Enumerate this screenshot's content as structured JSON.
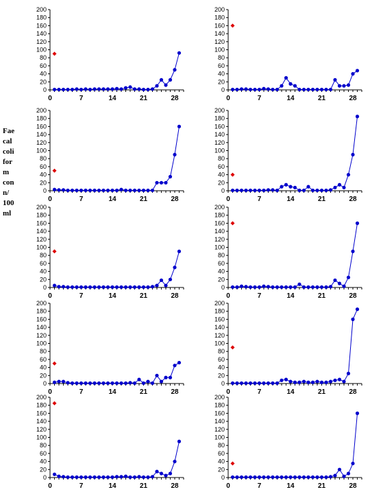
{
  "y_axis_label_lines": [
    "Fae",
    "cal",
    "coli",
    "for",
    "m",
    "con",
    "n/",
    "100",
    "ml"
  ],
  "colors": {
    "series": "#0000cc",
    "baseline_marker": "#dd0000",
    "axis": "#000000"
  },
  "chart_data": [
    {
      "type": "line",
      "title": "",
      "xlabel": "",
      "ylabel": "",
      "xlim": [
        0,
        30
      ],
      "ylim": [
        0,
        200
      ],
      "xticks": [
        "0",
        "7",
        "14",
        "21",
        "28"
      ],
      "yticks": [
        "0",
        "20",
        "40",
        "60",
        "80",
        "100",
        "120",
        "140",
        "160",
        "180",
        "200"
      ],
      "grid": false,
      "legend": "none",
      "markers": [
        {
          "x": 1,
          "y": 90
        }
      ],
      "series": [
        {
          "x": [
            1,
            2,
            3,
            4,
            5,
            6,
            7,
            8,
            9,
            10,
            11,
            12,
            13,
            14,
            15,
            16,
            17,
            18,
            19,
            20,
            21,
            22,
            23,
            24,
            25,
            26,
            27,
            28,
            29
          ],
          "values": [
            1,
            1,
            1,
            1,
            1,
            2,
            1,
            2,
            1,
            2,
            2,
            2,
            2,
            2,
            3,
            2,
            5,
            7,
            2,
            2,
            1,
            1,
            2,
            10,
            25,
            12,
            25,
            50,
            92
          ]
        }
      ]
    },
    {
      "type": "line",
      "title": "",
      "xlabel": "",
      "ylabel": "",
      "xlim": [
        0,
        30
      ],
      "ylim": [
        0,
        200
      ],
      "xticks": [
        "0",
        "7",
        "14",
        "21",
        "28"
      ],
      "yticks": [
        "0",
        "20",
        "40",
        "60",
        "80",
        "100",
        "120",
        "140",
        "160",
        "180",
        "200"
      ],
      "grid": false,
      "legend": "none",
      "markers": [
        {
          "x": 1,
          "y": 160
        }
      ],
      "series": [
        {
          "x": [
            1,
            2,
            3,
            4,
            5,
            6,
            7,
            8,
            9,
            10,
            11,
            12,
            13,
            14,
            15,
            16,
            17,
            18,
            19,
            20,
            21,
            22,
            23,
            24,
            25,
            26,
            27,
            28,
            29
          ],
          "values": [
            1,
            1,
            2,
            2,
            1,
            1,
            1,
            3,
            2,
            1,
            1,
            10,
            30,
            15,
            10,
            1,
            1,
            1,
            1,
            1,
            1,
            1,
            1,
            25,
            10,
            10,
            12,
            40,
            48
          ]
        }
      ]
    },
    {
      "type": "line",
      "title": "",
      "xlabel": "",
      "ylabel": "",
      "xlim": [
        0,
        30
      ],
      "ylim": [
        0,
        200
      ],
      "xticks": [
        "0",
        "7",
        "14",
        "21",
        "28"
      ],
      "yticks": [
        "0",
        "20",
        "40",
        "60",
        "80",
        "100",
        "120",
        "140",
        "160",
        "180",
        "200"
      ],
      "grid": false,
      "legend": "none",
      "markers": [
        {
          "x": 1,
          "y": 50
        }
      ],
      "series": [
        {
          "x": [
            1,
            2,
            3,
            4,
            5,
            6,
            7,
            8,
            9,
            10,
            11,
            12,
            13,
            14,
            15,
            16,
            17,
            18,
            19,
            20,
            21,
            22,
            23,
            24,
            25,
            26,
            27,
            28,
            29
          ],
          "values": [
            3,
            2,
            2,
            1,
            1,
            1,
            1,
            1,
            1,
            1,
            1,
            1,
            1,
            1,
            1,
            3,
            1,
            1,
            1,
            1,
            1,
            1,
            1,
            20,
            20,
            20,
            35,
            90,
            160
          ]
        }
      ]
    },
    {
      "type": "line",
      "title": "",
      "xlabel": "",
      "ylabel": "",
      "xlim": [
        0,
        30
      ],
      "ylim": [
        0,
        200
      ],
      "xticks": [
        "0",
        "7",
        "14",
        "21",
        "28"
      ],
      "yticks": [
        "0",
        "20",
        "40",
        "60",
        "80",
        "100",
        "120",
        "140",
        "160",
        "180",
        "200"
      ],
      "grid": false,
      "legend": "none",
      "markers": [
        {
          "x": 1,
          "y": 40
        }
      ],
      "series": [
        {
          "x": [
            1,
            2,
            3,
            4,
            5,
            6,
            7,
            8,
            9,
            10,
            11,
            12,
            13,
            14,
            15,
            16,
            17,
            18,
            19,
            20,
            21,
            22,
            23,
            24,
            25,
            26,
            27,
            28,
            29
          ],
          "values": [
            1,
            1,
            1,
            1,
            1,
            1,
            1,
            1,
            2,
            2,
            1,
            10,
            15,
            10,
            8,
            1,
            1,
            10,
            1,
            1,
            1,
            1,
            2,
            8,
            15,
            8,
            40,
            90,
            185
          ]
        }
      ]
    },
    {
      "type": "line",
      "title": "",
      "xlabel": "",
      "ylabel": "",
      "xlim": [
        0,
        30
      ],
      "ylim": [
        0,
        200
      ],
      "xticks": [
        "0",
        "7",
        "14",
        "21",
        "28"
      ],
      "yticks": [
        "0",
        "20",
        "40",
        "60",
        "80",
        "100",
        "120",
        "140",
        "160",
        "180",
        "200"
      ],
      "grid": false,
      "legend": "none",
      "markers": [
        {
          "x": 1,
          "y": 90
        }
      ],
      "series": [
        {
          "x": [
            1,
            2,
            3,
            4,
            5,
            6,
            7,
            8,
            9,
            10,
            11,
            12,
            13,
            14,
            15,
            16,
            17,
            18,
            19,
            20,
            21,
            22,
            23,
            24,
            25,
            26,
            27,
            28,
            29
          ],
          "values": [
            5,
            2,
            2,
            1,
            1,
            1,
            1,
            1,
            1,
            1,
            1,
            1,
            1,
            1,
            1,
            1,
            1,
            1,
            1,
            1,
            1,
            1,
            2,
            5,
            18,
            5,
            20,
            50,
            90
          ]
        }
      ]
    },
    {
      "type": "line",
      "title": "",
      "xlabel": "",
      "ylabel": "",
      "xlim": [
        0,
        30
      ],
      "ylim": [
        0,
        200
      ],
      "xticks": [
        "0",
        "7",
        "14",
        "21",
        "28"
      ],
      "yticks": [
        "0",
        "20",
        "40",
        "60",
        "80",
        "100",
        "120",
        "140",
        "160",
        "180",
        "200"
      ],
      "grid": false,
      "legend": "none",
      "markers": [
        {
          "x": 1,
          "y": 160
        }
      ],
      "series": [
        {
          "x": [
            1,
            2,
            3,
            4,
            5,
            6,
            7,
            8,
            9,
            10,
            11,
            12,
            13,
            14,
            15,
            16,
            17,
            18,
            19,
            20,
            21,
            22,
            23,
            24,
            25,
            26,
            27,
            28,
            29
          ],
          "values": [
            1,
            1,
            3,
            2,
            1,
            1,
            1,
            3,
            2,
            1,
            1,
            1,
            1,
            1,
            1,
            8,
            1,
            1,
            1,
            1,
            1,
            1,
            2,
            18,
            10,
            3,
            25,
            90,
            160
          ]
        }
      ]
    },
    {
      "type": "line",
      "title": "",
      "xlabel": "",
      "ylabel": "",
      "xlim": [
        0,
        30
      ],
      "ylim": [
        0,
        200
      ],
      "xticks": [
        "0",
        "7",
        "14",
        "21",
        "28"
      ],
      "yticks": [
        "0",
        "20",
        "40",
        "60",
        "80",
        "100",
        "120",
        "140",
        "160",
        "180",
        "200"
      ],
      "grid": false,
      "legend": "none",
      "markers": [
        {
          "x": 1,
          "y": 50
        }
      ],
      "series": [
        {
          "x": [
            1,
            2,
            3,
            4,
            5,
            6,
            7,
            8,
            9,
            10,
            11,
            12,
            13,
            14,
            15,
            16,
            17,
            18,
            19,
            20,
            21,
            22,
            23,
            24,
            25,
            26,
            27,
            28,
            29
          ],
          "values": [
            3,
            5,
            5,
            2,
            1,
            1,
            1,
            1,
            1,
            1,
            1,
            1,
            1,
            1,
            1,
            1,
            1,
            2,
            1,
            10,
            1,
            5,
            1,
            20,
            5,
            15,
            15,
            45,
            52
          ]
        }
      ]
    },
    {
      "type": "line",
      "title": "",
      "xlabel": "",
      "ylabel": "",
      "xlim": [
        0,
        30
      ],
      "ylim": [
        0,
        200
      ],
      "xticks": [
        "0",
        "7",
        "14",
        "21",
        "28"
      ],
      "yticks": [
        "0",
        "20",
        "40",
        "60",
        "80",
        "100",
        "120",
        "140",
        "160",
        "180",
        "200"
      ],
      "grid": false,
      "legend": "none",
      "markers": [
        {
          "x": 1,
          "y": 90
        }
      ],
      "series": [
        {
          "x": [
            1,
            2,
            3,
            4,
            5,
            6,
            7,
            8,
            9,
            10,
            11,
            12,
            13,
            14,
            15,
            16,
            17,
            18,
            19,
            20,
            21,
            22,
            23,
            24,
            25,
            26,
            27,
            28,
            29
          ],
          "values": [
            1,
            1,
            1,
            1,
            1,
            1,
            1,
            1,
            1,
            1,
            1,
            8,
            10,
            5,
            3,
            3,
            5,
            3,
            3,
            5,
            3,
            3,
            5,
            8,
            10,
            5,
            25,
            160,
            185
          ]
        }
      ]
    },
    {
      "type": "line",
      "title": "",
      "xlabel": "",
      "ylabel": "",
      "xlim": [
        0,
        30
      ],
      "ylim": [
        0,
        200
      ],
      "xticks": [
        "0",
        "7",
        "14",
        "21",
        "28"
      ],
      "yticks": [
        "0",
        "20",
        "40",
        "60",
        "80",
        "100",
        "120",
        "140",
        "160",
        "180",
        "200"
      ],
      "grid": false,
      "legend": "none",
      "markers": [
        {
          "x": 1,
          "y": 185
        }
      ],
      "series": [
        {
          "x": [
            1,
            2,
            3,
            4,
            5,
            6,
            7,
            8,
            9,
            10,
            11,
            12,
            13,
            14,
            15,
            16,
            17,
            18,
            19,
            20,
            21,
            22,
            23,
            24,
            25,
            26,
            27,
            28,
            29
          ],
          "values": [
            8,
            3,
            2,
            1,
            1,
            1,
            1,
            1,
            1,
            1,
            1,
            1,
            1,
            1,
            2,
            2,
            3,
            1,
            1,
            2,
            1,
            1,
            2,
            15,
            10,
            5,
            10,
            40,
            90
          ]
        }
      ]
    },
    {
      "type": "line",
      "title": "",
      "xlabel": "",
      "ylabel": "",
      "xlim": [
        0,
        30
      ],
      "ylim": [
        0,
        200
      ],
      "xticks": [
        "0",
        "7",
        "14",
        "21",
        "28"
      ],
      "yticks": [
        "0",
        "20",
        "40",
        "60",
        "80",
        "100",
        "120",
        "140",
        "160",
        "180",
        "200"
      ],
      "grid": false,
      "legend": "none",
      "markers": [
        {
          "x": 1,
          "y": 35
        }
      ],
      "series": [
        {
          "x": [
            1,
            2,
            3,
            4,
            5,
            6,
            7,
            8,
            9,
            10,
            11,
            12,
            13,
            14,
            15,
            16,
            17,
            18,
            19,
            20,
            21,
            22,
            23,
            24,
            25,
            26,
            27,
            28,
            29
          ],
          "values": [
            1,
            1,
            1,
            1,
            1,
            1,
            1,
            1,
            1,
            1,
            1,
            1,
            1,
            1,
            1,
            1,
            1,
            1,
            1,
            1,
            1,
            1,
            2,
            5,
            20,
            3,
            10,
            35,
            160
          ]
        }
      ]
    }
  ]
}
